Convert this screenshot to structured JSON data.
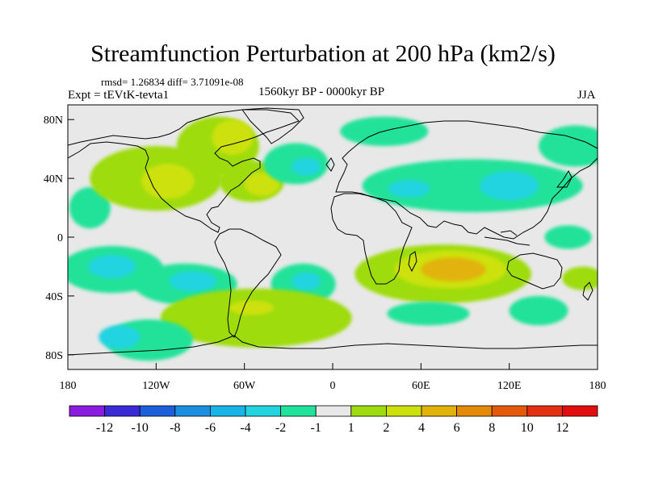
{
  "title": "Streamfunction Perturbation at 200 hPa (km2/s)",
  "stats_line": "rmsd= 1.26834 diff= 3.71091e-08",
  "expt_line": "Expt = tEVtK-tevta1",
  "period_line": "1560kyr BP - 0000kyr BP",
  "season": "JJA",
  "map": {
    "lon_range": [
      -180,
      180
    ],
    "lat_range": [
      -90,
      90
    ],
    "background_color": "#e8e8e8",
    "lat_ticks": [
      {
        "label": "80N",
        "lat": 80
      },
      {
        "label": "40N",
        "lat": 40
      },
      {
        "label": "0",
        "lat": 0
      },
      {
        "label": "40S",
        "lat": -40
      },
      {
        "label": "80S",
        "lat": -80
      }
    ],
    "lon_ticks": [
      {
        "label": "180",
        "lon": -180
      },
      {
        "label": "120W",
        "lon": -120
      },
      {
        "label": "60W",
        "lon": -60
      },
      {
        "label": "0",
        "lon": 0
      },
      {
        "label": "60E",
        "lon": 60
      },
      {
        "label": "120E",
        "lon": 120
      },
      {
        "label": "180",
        "lon": 180
      }
    ]
  },
  "colorbar": {
    "labels": [
      "-12",
      "-10",
      "-8",
      "-6",
      "-4",
      "-2",
      "-1",
      "1",
      "2",
      "4",
      "6",
      "8",
      "10",
      "12"
    ],
    "colors": [
      "#8a1ce0",
      "#3a2ad6",
      "#1d5fd9",
      "#1a8fe0",
      "#17b4e8",
      "#22d4e0",
      "#20e29a",
      "#e8e8e8",
      "#9edc10",
      "#cce10c",
      "#e2b20a",
      "#e48a08",
      "#e45a08",
      "#e23010",
      "#e20e0e"
    ]
  },
  "chart_data": {
    "type": "heatmap",
    "title": "Streamfunction Perturbation at 200 hPa (km2/s)",
    "xlabel": "",
    "ylabel": "",
    "xlim": [
      -180,
      180
    ],
    "ylim": [
      -90,
      90
    ],
    "levels": [
      -12,
      -10,
      -8,
      -6,
      -4,
      -2,
      -1,
      1,
      2,
      4,
      6,
      8,
      10,
      12
    ],
    "blobs": [
      {
        "lon": -165,
        "lat": 20,
        "rlon": 14,
        "rlat": 14,
        "value": -1.5
      },
      {
        "lon": -120,
        "lat": 40,
        "rlon": 45,
        "rlat": 22,
        "value": 1.5
      },
      {
        "lon": -112,
        "lat": 38,
        "rlon": 18,
        "rlat": 12,
        "value": 3
      },
      {
        "lon": -78,
        "lat": 62,
        "rlon": 28,
        "rlat": 20,
        "value": 1.5
      },
      {
        "lon": -68,
        "lat": 68,
        "rlon": 14,
        "rlat": 12,
        "value": 3
      },
      {
        "lon": -55,
        "lat": 38,
        "rlon": 22,
        "rlat": 14,
        "value": 1.5
      },
      {
        "lon": -48,
        "lat": 36,
        "rlon": 12,
        "rlat": 8,
        "value": 3
      },
      {
        "lon": -25,
        "lat": 50,
        "rlon": 22,
        "rlat": 14,
        "value": -1.5
      },
      {
        "lon": -18,
        "lat": 48,
        "rlon": 10,
        "rlat": 6,
        "value": -2.5
      },
      {
        "lon": 35,
        "lat": 72,
        "rlon": 30,
        "rlat": 10,
        "value": -1.5
      },
      {
        "lon": 95,
        "lat": 35,
        "rlon": 75,
        "rlat": 18,
        "value": -1.5
      },
      {
        "lon": 120,
        "lat": 35,
        "rlon": 20,
        "rlat": 10,
        "value": -2.5
      },
      {
        "lon": 52,
        "lat": 33,
        "rlon": 14,
        "rlat": 6,
        "value": -2.5
      },
      {
        "lon": 165,
        "lat": 62,
        "rlon": 25,
        "rlat": 14,
        "value": -1.5
      },
      {
        "lon": -150,
        "lat": -22,
        "rlon": 35,
        "rlat": 16,
        "value": -1.5
      },
      {
        "lon": -150,
        "lat": -20,
        "rlon": 16,
        "rlat": 8,
        "value": -2.5
      },
      {
        "lon": -100,
        "lat": -32,
        "rlon": 35,
        "rlat": 14,
        "value": -1.5
      },
      {
        "lon": -95,
        "lat": -30,
        "rlon": 16,
        "rlat": 7,
        "value": -2.5
      },
      {
        "lon": -20,
        "lat": -32,
        "rlon": 22,
        "rlat": 14,
        "value": -1.5
      },
      {
        "lon": -18,
        "lat": -30,
        "rlon": 10,
        "rlat": 6,
        "value": -2.5
      },
      {
        "lon": -52,
        "lat": -55,
        "rlon": 65,
        "rlat": 20,
        "value": 1.5
      },
      {
        "lon": -55,
        "lat": -48,
        "rlon": 15,
        "rlat": 5,
        "value": 3
      },
      {
        "lon": -125,
        "lat": -70,
        "rlon": 30,
        "rlat": 14,
        "value": -1.5
      },
      {
        "lon": -145,
        "lat": -68,
        "rlon": 14,
        "rlat": 8,
        "value": -2.5
      },
      {
        "lon": 75,
        "lat": -25,
        "rlon": 60,
        "rlat": 20,
        "value": 1.5
      },
      {
        "lon": 80,
        "lat": -22,
        "rlon": 38,
        "rlat": 13,
        "value": 3
      },
      {
        "lon": 82,
        "lat": -22,
        "rlon": 22,
        "rlat": 8,
        "value": 5
      },
      {
        "lon": 65,
        "lat": -52,
        "rlon": 28,
        "rlat": 8,
        "value": -1.5
      },
      {
        "lon": 140,
        "lat": -50,
        "rlon": 20,
        "rlat": 10,
        "value": -1.5
      },
      {
        "lon": 170,
        "lat": -28,
        "rlon": 14,
        "rlat": 8,
        "value": 1.5
      },
      {
        "lon": 160,
        "lat": 0,
        "rlon": 16,
        "rlat": 8,
        "value": -1.5
      }
    ]
  }
}
